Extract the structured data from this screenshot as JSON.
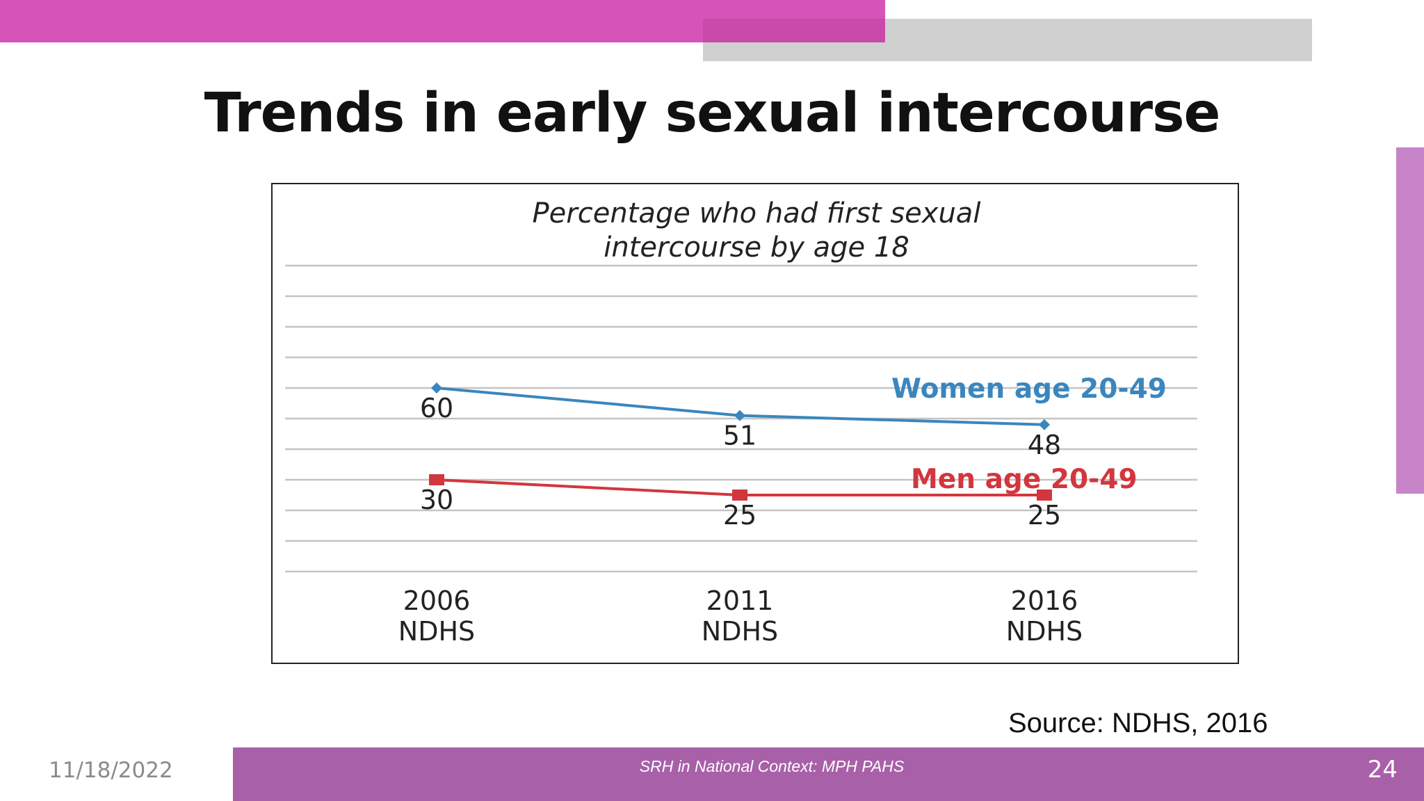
{
  "slide": {
    "title": "Trends in early sexual intercourse",
    "source": "Source:  NDHS, 2016",
    "footer_text": "SRH in National Context: MPH PAHS",
    "page_number": "24",
    "date": "11/18/2022"
  },
  "colors": {
    "accent_pink": "#d654b8",
    "accent_gray": "#d0d0d0",
    "footer_purple": "#a860a8",
    "women_series": "#3a86be",
    "men_series": "#d2363e"
  },
  "chart_data": {
    "type": "line",
    "title_lines": [
      "Percentage who had first sexual",
      "intercourse by age 18"
    ],
    "categories": [
      {
        "year": "2006",
        "survey": "NDHS"
      },
      {
        "year": "2011",
        "survey": "NDHS"
      },
      {
        "year": "2016",
        "survey": "NDHS"
      }
    ],
    "ylim": [
      0,
      100
    ],
    "grid": true,
    "y_axis_labels_shown": false,
    "series": [
      {
        "name": "Women age 20-49",
        "values": [
          60,
          51,
          48
        ],
        "marker": "diamond",
        "color": "#3a86be"
      },
      {
        "name": "Men age 20-49",
        "values": [
          30,
          25,
          25
        ],
        "marker": "square",
        "color": "#d2363e"
      }
    ]
  }
}
